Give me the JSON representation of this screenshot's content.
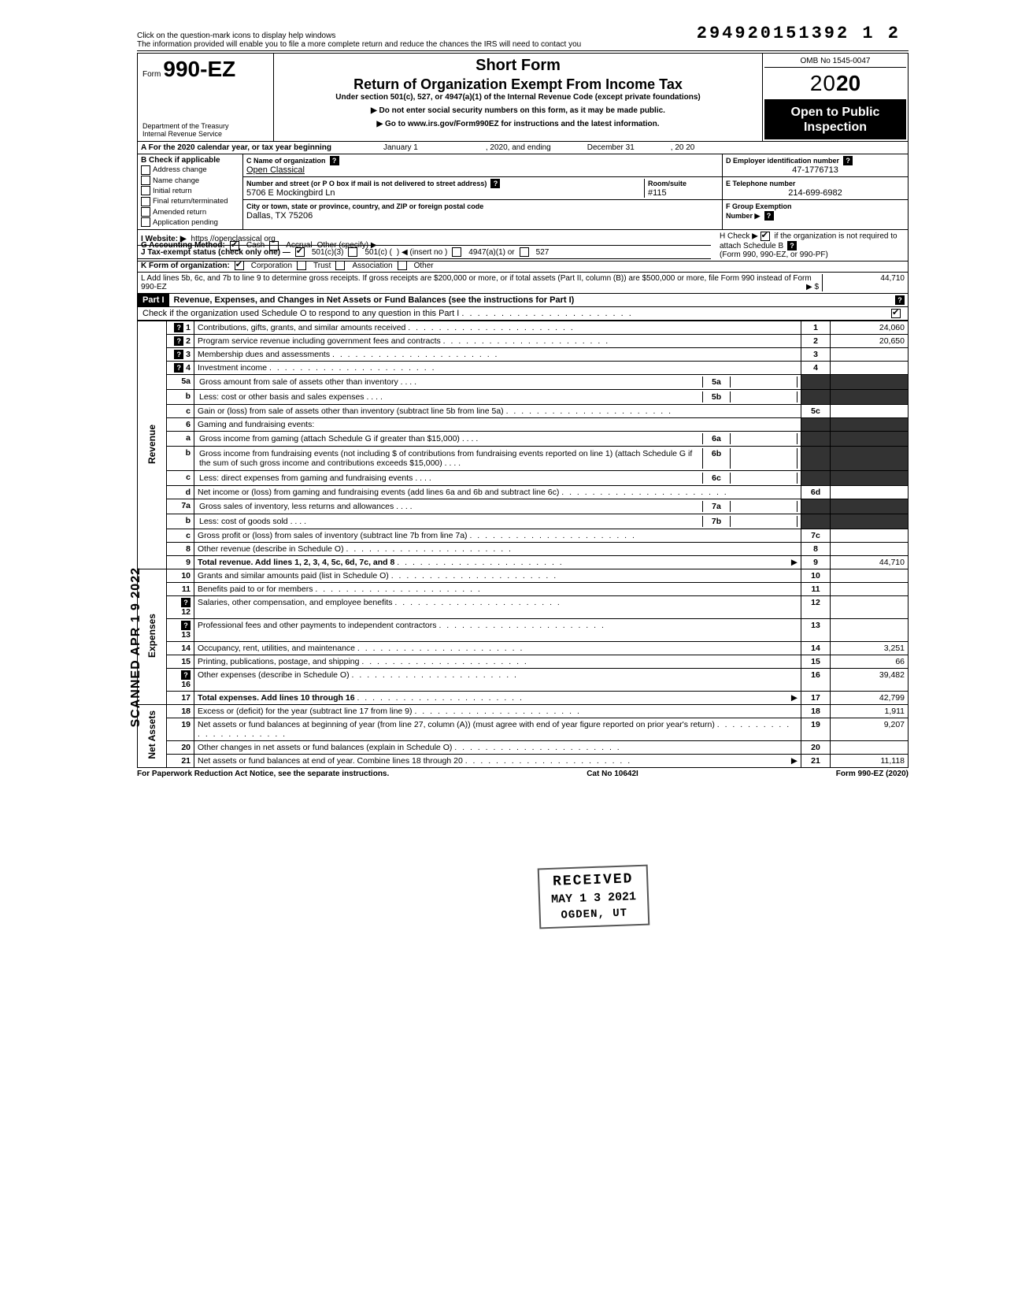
{
  "dln": "294920151392 1   2",
  "top_note_1": "Click on the question-mark icons to display help windows",
  "top_note_2": "The information provided will enable you to file a more complete return and reduce the chances the IRS will need to contact you",
  "form": {
    "prefix": "Form",
    "number": "990-EZ",
    "dept": "Department of the Treasury",
    "irs": "Internal Revenue Service",
    "short": "Short Form",
    "title": "Return of Organization Exempt From Income Tax",
    "subtitle": "Under section 501(c), 527, or 4947(a)(1) of the Internal Revenue Code (except private foundations)",
    "note1": "▶ Do not enter social security numbers on this form, as it may be made public.",
    "note2": "▶ Go to www.irs.gov/Form990EZ for instructions and the latest information.",
    "omb": "OMB No 1545-0047",
    "year": "2020",
    "open": "Open to Public Inspection"
  },
  "row_a": {
    "label": "A For the 2020 calendar year, or tax year beginning",
    "begin": "January 1",
    "mid": ", 2020, and ending",
    "end": "December 31",
    "end2": ", 20   20"
  },
  "section_b": {
    "header": "B Check if applicable",
    "items": [
      "Address change",
      "Name change",
      "Initial return",
      "Final return/terminated",
      "Amended return",
      "Application pending"
    ]
  },
  "section_c": {
    "label": "C Name of organization",
    "name": "Open Classical",
    "addr_label": "Number and street (or P O  box if mail is not delivered to street address)",
    "addr": "5706 E Mockingbird Ln",
    "room_label": "Room/suite",
    "room": "#115",
    "city_label": "City or town, state or province, country, and ZIP or foreign postal code",
    "city": "Dallas, TX 75206"
  },
  "section_d": {
    "label": "D Employer identification number",
    "value": "47-1776713"
  },
  "section_e": {
    "label": "E Telephone number",
    "value": "214-699-6982"
  },
  "section_f": {
    "label": "F Group Exemption",
    "label2": "Number ▶"
  },
  "line_g": {
    "label": "G Accounting Method:",
    "cash": "Cash",
    "accrual": "Accrual",
    "other": "Other (specify) ▶"
  },
  "line_h": {
    "text": "H Check ▶",
    "text2": "if the organization is not required to attach Schedule B",
    "text3": "(Form 990, 990-EZ, or 990-PF)"
  },
  "line_i": {
    "label": "I  Website: ▶",
    "value": "https //openclassical org"
  },
  "line_j": {
    "label": "J Tax-exempt status (check only one) —",
    "o1": "501(c)(3)",
    "o2": "501(c) (",
    "o2b": ")  ◀ (insert no )",
    "o3": "4947(a)(1) or",
    "o4": "527"
  },
  "line_k": {
    "label": "K Form of organization:",
    "o1": "Corporation",
    "o2": "Trust",
    "o3": "Association",
    "o4": "Other"
  },
  "line_l": {
    "text": "L Add lines 5b, 6c, and 7b to line 9 to determine gross receipts. If gross receipts are $200,000 or more, or if total assets (Part II, column (B)) are $500,000 or more, file Form 990 instead of Form 990-EZ",
    "arrow": "▶  $",
    "value": "44,710"
  },
  "part1": {
    "tag": "Part I",
    "title": "Revenue, Expenses, and Changes in Net Assets or Fund Balances (see the instructions for Part I)",
    "sched_o": "Check if the organization used Schedule O to respond to any question in this Part I",
    "sched_o_checked": true
  },
  "side_labels": {
    "revenue": "Revenue",
    "expenses": "Expenses",
    "netassets": "Net Assets"
  },
  "lines": [
    {
      "n": "1",
      "d": "Contributions, gifts, grants, and similar amounts received",
      "c": "1",
      "a": "24,060",
      "help": true
    },
    {
      "n": "2",
      "d": "Program service revenue including government fees and contracts",
      "c": "2",
      "a": "20,650",
      "help": true
    },
    {
      "n": "3",
      "d": "Membership dues and assessments",
      "c": "3",
      "a": "",
      "help": true
    },
    {
      "n": "4",
      "d": "Investment income",
      "c": "4",
      "a": "",
      "help": true
    },
    {
      "n": "5a",
      "d": "Gross amount from sale of assets other than inventory",
      "sub": "5a"
    },
    {
      "n": "b",
      "d": "Less: cost or other basis and sales expenses",
      "sub": "5b"
    },
    {
      "n": "c",
      "d": "Gain or (loss) from sale of assets other than inventory (subtract line 5b from line 5a)",
      "c": "5c",
      "a": ""
    },
    {
      "n": "6",
      "d": "Gaming and fundraising events:"
    },
    {
      "n": "a",
      "d": "Gross income from gaming (attach Schedule G if greater than $15,000)",
      "sub": "6a"
    },
    {
      "n": "b",
      "d": "Gross income from fundraising events (not including  $                    of contributions from fundraising events reported on line 1) (attach Schedule G if the sum of such gross income and contributions exceeds $15,000)",
      "sub": "6b"
    },
    {
      "n": "c",
      "d": "Less: direct expenses from gaming and fundraising events",
      "sub": "6c"
    },
    {
      "n": "d",
      "d": "Net income or (loss) from gaming and fundraising events (add lines 6a and 6b and subtract line 6c)",
      "c": "6d",
      "a": ""
    },
    {
      "n": "7a",
      "d": "Gross sales of inventory, less returns and allowances",
      "sub": "7a"
    },
    {
      "n": "b",
      "d": "Less: cost of goods sold",
      "sub": "7b"
    },
    {
      "n": "c",
      "d": "Gross profit or (loss) from sales of inventory (subtract line 7b from line 7a)",
      "c": "7c",
      "a": ""
    },
    {
      "n": "8",
      "d": "Other revenue (describe in Schedule O)",
      "c": "8",
      "a": ""
    },
    {
      "n": "9",
      "d": "Total revenue. Add lines 1, 2, 3, 4, 5c, 6d, 7c, and 8",
      "c": "9",
      "a": "44,710",
      "bold": true,
      "arrow": true
    },
    {
      "n": "10",
      "d": "Grants and similar amounts paid (list in Schedule O)",
      "c": "10",
      "a": ""
    },
    {
      "n": "11",
      "d": "Benefits paid to or for members",
      "c": "11",
      "a": ""
    },
    {
      "n": "12",
      "d": "Salaries, other compensation, and employee benefits",
      "c": "12",
      "a": "",
      "help": true
    },
    {
      "n": "13",
      "d": "Professional fees and other payments to independent contractors",
      "c": "13",
      "a": "",
      "help": true
    },
    {
      "n": "14",
      "d": "Occupancy, rent, utilities, and maintenance",
      "c": "14",
      "a": "3,251"
    },
    {
      "n": "15",
      "d": "Printing, publications, postage, and shipping",
      "c": "15",
      "a": "66"
    },
    {
      "n": "16",
      "d": "Other expenses (describe in Schedule O)",
      "c": "16",
      "a": "39,482",
      "help": true
    },
    {
      "n": "17",
      "d": "Total expenses. Add lines 10 through 16",
      "c": "17",
      "a": "42,799",
      "bold": true,
      "arrow": true
    },
    {
      "n": "18",
      "d": "Excess or (deficit) for the year (subtract line 17 from line 9)",
      "c": "18",
      "a": "1,911"
    },
    {
      "n": "19",
      "d": "Net assets or fund balances at beginning of year (from line 27, column (A)) (must agree with end of year figure reported on prior year's return)",
      "c": "19",
      "a": "9,207"
    },
    {
      "n": "20",
      "d": "Other changes in net assets or fund balances (explain in Schedule O)",
      "c": "20",
      "a": ""
    },
    {
      "n": "21",
      "d": "Net assets or fund balances at end of year. Combine lines 18 through 20",
      "c": "21",
      "a": "11,118",
      "arrow": true
    }
  ],
  "footer": {
    "left": "For Paperwork Reduction Act Notice, see the separate instructions.",
    "mid": "Cat No  10642I",
    "right": "Form 990-EZ (2020)"
  },
  "scanned": "SCANNED APR 1 9 2022",
  "stamp": {
    "r1": "RECEIVED",
    "r2": "MAY 1 3 2021",
    "r3": "OGDEN, UT"
  }
}
